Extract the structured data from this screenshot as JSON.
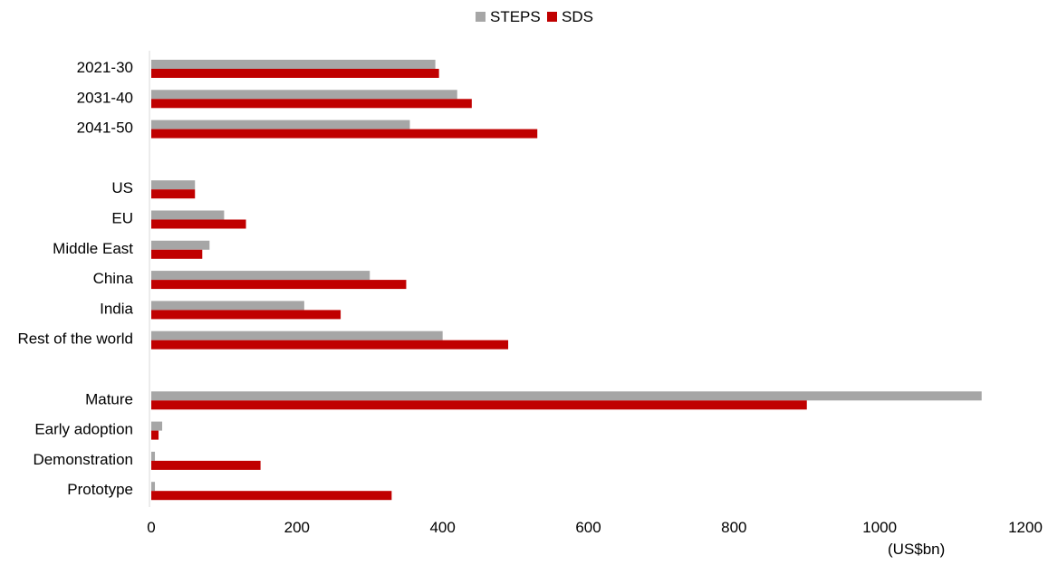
{
  "chart_data": {
    "type": "bar",
    "orientation": "horizontal",
    "categories": [
      "2021-30",
      "2031-40",
      "2041-50",
      "",
      "US",
      "EU",
      "Middle East",
      "China",
      "India",
      "Rest of the world",
      "",
      "Mature",
      "Early adoption",
      "Demonstration",
      "Prototype"
    ],
    "series": [
      {
        "name": "STEPS",
        "color": "#a6a6a6",
        "values": [
          390,
          420,
          355,
          null,
          60,
          100,
          80,
          300,
          210,
          400,
          null,
          1140,
          15,
          5,
          5
        ]
      },
      {
        "name": "SDS",
        "color": "#c00000",
        "values": [
          395,
          440,
          530,
          null,
          60,
          130,
          70,
          350,
          260,
          490,
          null,
          900,
          10,
          150,
          330
        ]
      }
    ],
    "xlim": [
      0,
      1200
    ],
    "xticks": [
      "0",
      "200",
      "400",
      "600",
      "800",
      "1000",
      "1200"
    ],
    "unit_label": "(US$bn)",
    "legend_position": "top-center",
    "grid": false
  }
}
